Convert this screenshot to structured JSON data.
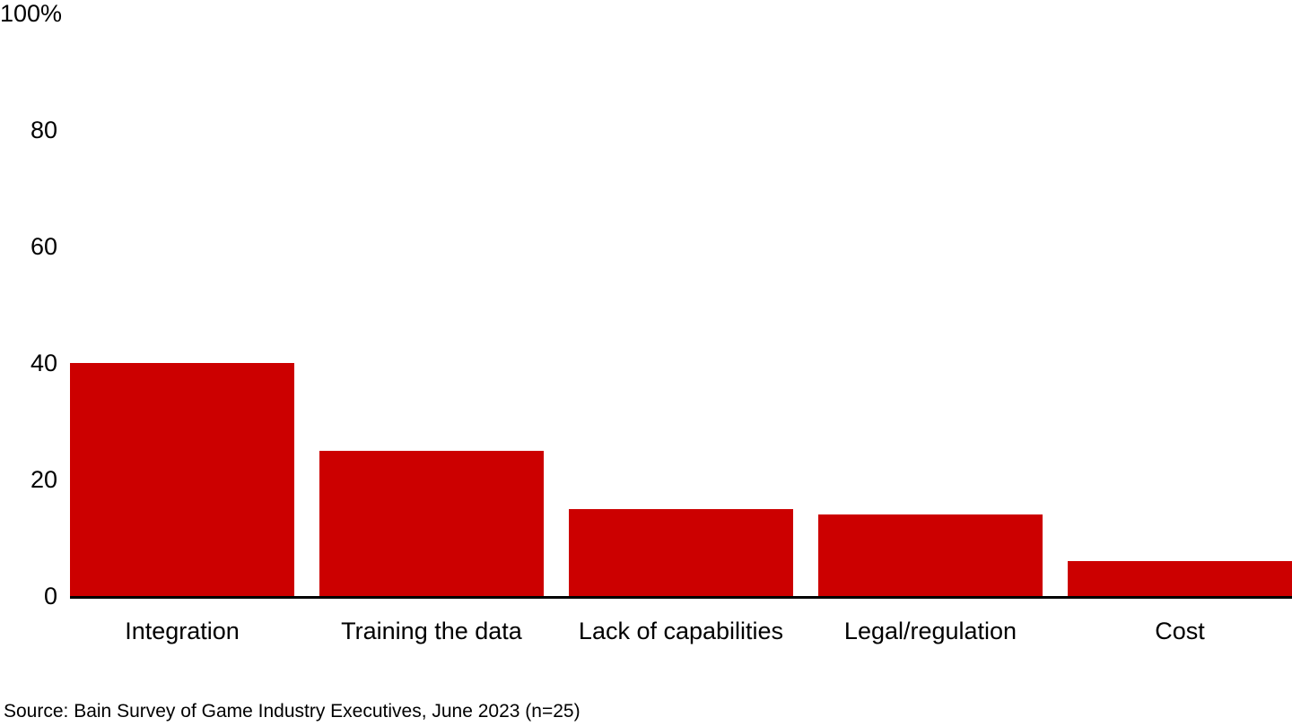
{
  "chart_data": {
    "type": "bar",
    "categories": [
      "Integration",
      "Training the data",
      "Lack of capabilities",
      "Legal/regulation",
      "Cost"
    ],
    "values": [
      40,
      25,
      15,
      14,
      6
    ],
    "title": "",
    "xlabel": "",
    "ylabel": "",
    "ylim": [
      0,
      100
    ],
    "yticks": [
      {
        "label": "100%",
        "value": 100
      },
      {
        "label": "80",
        "value": 80
      },
      {
        "label": "60",
        "value": 60
      },
      {
        "label": "40",
        "value": 40
      },
      {
        "label": "20",
        "value": 20
      },
      {
        "label": "0",
        "value": 0
      }
    ],
    "grid": false,
    "legend_position": "none",
    "bar_color": "#cc0000",
    "axis_color": "#000000",
    "text_color": "#000000",
    "background_color": "#ffffff",
    "source_note": "Source: Bain Survey of Game Industry Executives, June 2023 (n=25)"
  }
}
